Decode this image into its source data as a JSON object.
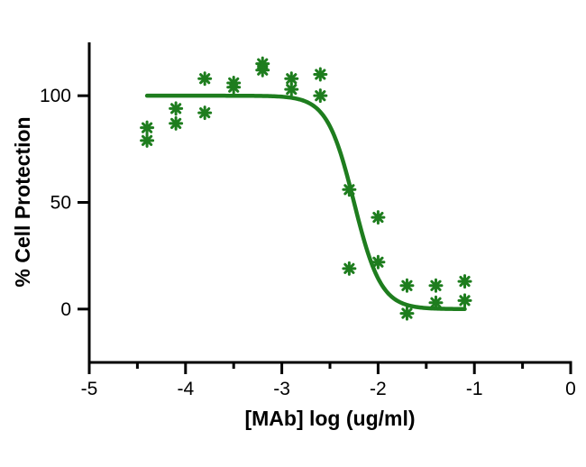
{
  "chart_data": {
    "type": "scatter",
    "xlabel": "[MAb] log (ug/ml)",
    "ylabel": "% Cell Protection",
    "xlim": [
      -5,
      0
    ],
    "ylim": [
      -25,
      125
    ],
    "x_ticks": [
      -5,
      -4,
      -3,
      -2,
      -1,
      0
    ],
    "x_tick_labels": [
      "-5",
      "-4",
      "-3",
      "-2",
      "-1",
      "0"
    ],
    "x_minor_ticks": [
      -4.5,
      -3.5,
      -2.5,
      -1.5,
      -0.5
    ],
    "y_ticks": [
      0,
      50,
      100
    ],
    "y_tick_labels": [
      "0",
      "50",
      "100"
    ],
    "grid": false,
    "legend": "none",
    "colors": {
      "series": "#1e7d1e",
      "axis": "#000000"
    },
    "series": [
      {
        "marker": "asterisk",
        "points": [
          [
            -4.4,
            85
          ],
          [
            -4.4,
            79
          ],
          [
            -4.1,
            94
          ],
          [
            -4.1,
            87
          ],
          [
            -3.8,
            108
          ],
          [
            -3.8,
            92
          ],
          [
            -3.5,
            106
          ],
          [
            -3.5,
            104
          ],
          [
            -3.2,
            115
          ],
          [
            -3.2,
            112
          ],
          [
            -2.9,
            108
          ],
          [
            -2.9,
            103
          ],
          [
            -2.6,
            110
          ],
          [
            -2.6,
            100
          ],
          [
            -2.3,
            56
          ],
          [
            -2.3,
            19
          ],
          [
            -2.0,
            43
          ],
          [
            -2.0,
            22
          ],
          [
            -1.7,
            11
          ],
          [
            -1.7,
            -2
          ],
          [
            -1.4,
            11
          ],
          [
            -1.4,
            3
          ],
          [
            -1.1,
            13
          ],
          [
            -1.1,
            4
          ]
        ]
      }
    ],
    "fit": {
      "model": "sigmoidal",
      "top": 100,
      "bottom": 0,
      "logEC50": -2.25,
      "hill_slope": -3.1,
      "x_range": [
        -4.4,
        -1.1
      ]
    }
  }
}
